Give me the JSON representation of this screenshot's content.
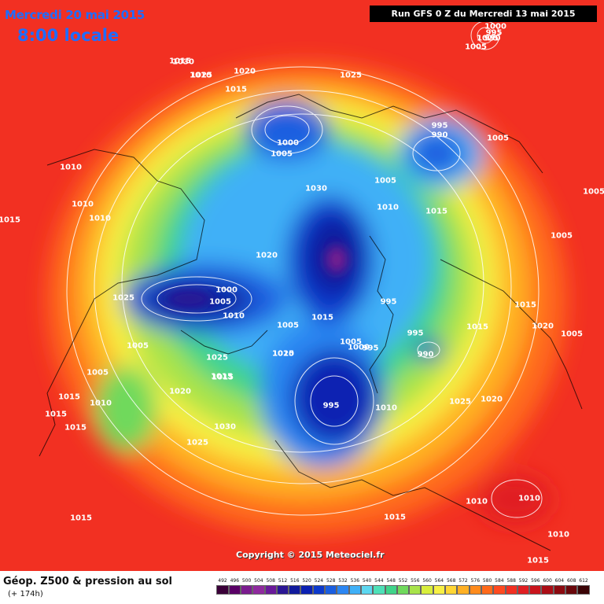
{
  "header": {
    "date": "Mercredi 20 mai 2015",
    "time": "8:00 locale",
    "run": "Run GFS 0 Z du Mercredi 13 mai 2015"
  },
  "copyright": "Copyright © 2015 Meteociel.fr",
  "legend": {
    "title": "Géop. Z500 & pression au sol",
    "subtitle": "(+ 174h)",
    "scale": [
      "492",
      "496",
      "500",
      "504",
      "508",
      "512",
      "516",
      "520",
      "524",
      "528",
      "532",
      "536",
      "540",
      "544",
      "548",
      "552",
      "556",
      "560",
      "564",
      "568",
      "572",
      "576",
      "580",
      "584",
      "588",
      "592",
      "596",
      "600",
      "604",
      "608",
      "612"
    ],
    "colors": [
      "#3a0038",
      "#5a0066",
      "#7b1c8f",
      "#8f2a9e",
      "#6a1a9a",
      "#2b1694",
      "#111a9c",
      "#0b20b2",
      "#0c39cc",
      "#1a5ee0",
      "#2c86f2",
      "#3fb0f7",
      "#5cd7f0",
      "#4ee0b8",
      "#3fd48a",
      "#6fd95c",
      "#a8e34a",
      "#d8ee3c",
      "#f7f045",
      "#ffd634",
      "#ffb024",
      "#ff8b1c",
      "#ff6a1a",
      "#ff4a20",
      "#f23022",
      "#e01e22",
      "#c9141c",
      "#ab0e16",
      "#8c0a10",
      "#6a070b",
      "#3a0305"
    ]
  },
  "pressure_labels": [
    "1030",
    "1025",
    "1020",
    "1015",
    "1030",
    "1025",
    "1000",
    "995",
    "990",
    "1005",
    "1005",
    "1025",
    "1000",
    "1005",
    "995",
    "990",
    "1010",
    "1005",
    "1010",
    "1005",
    "1015",
    "1010",
    "1010",
    "1015",
    "1015",
    "1010",
    "1020",
    "1005",
    "1015",
    "1025",
    "1000",
    "1005",
    "1010",
    "995",
    "1015",
    "1010",
    "1015",
    "1020",
    "1005",
    "1005",
    "1025",
    "1015",
    "995",
    "1005",
    "1000",
    "995",
    "990",
    "1020",
    "1025",
    "1005",
    "1015",
    "1005",
    "1010",
    "995",
    "1010",
    "1025",
    "1020",
    "1015",
    "1015",
    "1015",
    "1030",
    "1010",
    "1025",
    "1015",
    "1010",
    "1010",
    "1015",
    "1015"
  ]
}
